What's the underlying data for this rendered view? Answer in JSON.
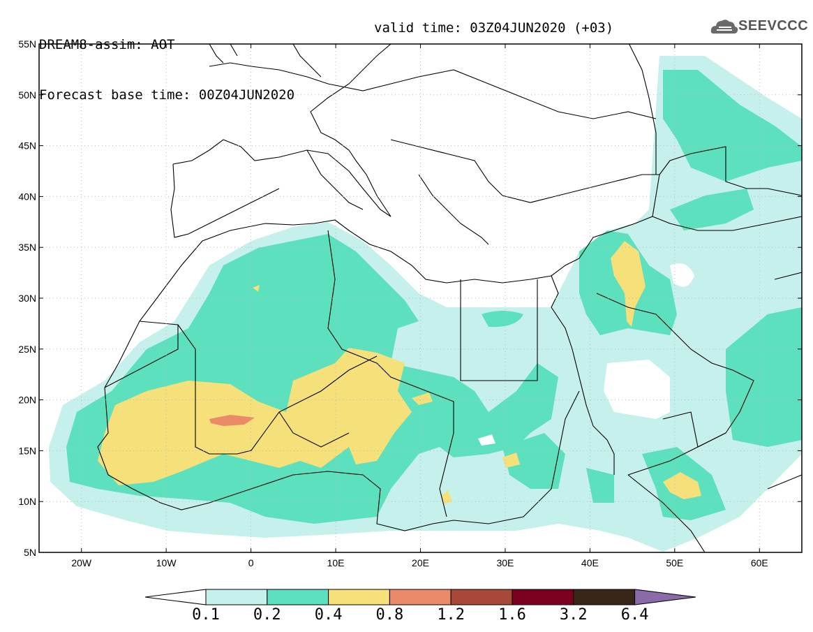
{
  "header": {
    "title": "DREAM8-assim: AOT",
    "base_time": "Forecast base time: 00Z04JUN2020",
    "valid_time": "valid time: 03Z04JUN2020 (+03)"
  },
  "logo": {
    "text": "SEEVCCC",
    "icon": "cloud-icon"
  },
  "map": {
    "lat_labels": [
      "55N",
      "50N",
      "45N",
      "40N",
      "35N",
      "30N",
      "25N",
      "20N",
      "15N",
      "10N",
      "5N"
    ],
    "lon_labels": [
      "20W",
      "10W",
      "0",
      "10E",
      "20E",
      "30E",
      "40E",
      "50E",
      "60E"
    ],
    "lon_range": [
      -25,
      65
    ],
    "lat_range": [
      5,
      55
    ],
    "grid": "dotted",
    "variable": "AOT"
  },
  "colorbar": {
    "labels": [
      "0.1",
      "0.2",
      "0.4",
      "0.8",
      "1.2",
      "1.6",
      "3.2",
      "6.4"
    ],
    "colors": [
      "#c6f0eb",
      "#5ce0bd",
      "#f5e07a",
      "#ea8a68",
      "#a84838",
      "#7a0020",
      "#3a2618",
      "#8a6aa8"
    ],
    "under_color": "#ffffff"
  },
  "field_colors": {
    "level1": "#c6f0eb",
    "level2": "#5ce0bd",
    "level3": "#f5e07a",
    "level4": "#ea8a68"
  }
}
